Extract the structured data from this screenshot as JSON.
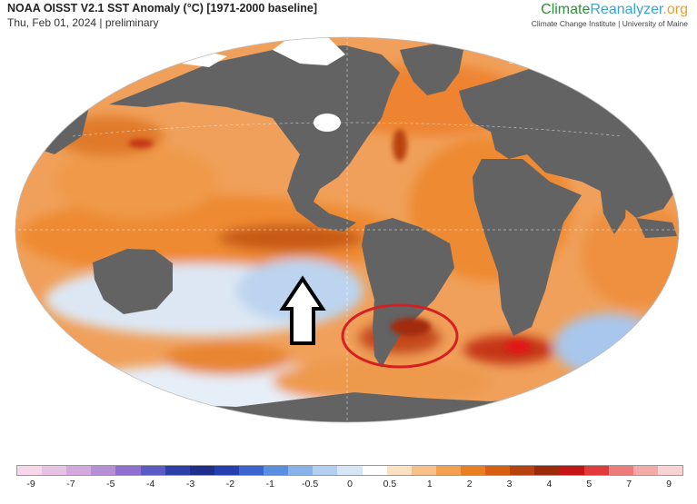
{
  "header": {
    "title": "NOAA OISST V2.1 SST Anomaly (°C) [1971-2000 baseline]",
    "date": "Thu, Feb 01, 2024 | preliminary"
  },
  "brand": {
    "part1": "Climate",
    "part2": "Reanalyzer",
    "part3": ".org",
    "subtitle": "Climate Change Institute | University of Maine"
  },
  "colorbar": {
    "colors": [
      "#f6d6e8",
      "#e6c2e4",
      "#d3a9de",
      "#b78fd6",
      "#8f6fcf",
      "#5a5bc4",
      "#2f3fa8",
      "#1e2f8a",
      "#263fb0",
      "#3a64d0",
      "#5a8ee0",
      "#87b2ea",
      "#b1cff2",
      "#d6e6f8",
      "#ffffff",
      "#fbe0c2",
      "#f7c089",
      "#f2a04e",
      "#ea7f22",
      "#d95f12",
      "#b8420d",
      "#9a2a0a",
      "#c41414",
      "#e23a3a",
      "#ee7a7a",
      "#f5aaaa",
      "#f9d2d2"
    ],
    "tick_labels": [
      "-9",
      "-7",
      "-5",
      "-4",
      "-3",
      "-2",
      "-1",
      "-0.5",
      "0",
      "0.5",
      "1",
      "2",
      "3",
      "4",
      "5",
      "7",
      "9"
    ]
  },
  "annotations": {
    "arrow_color": "#000000",
    "circle_color": "#d42020"
  },
  "palette": {
    "ocean_warm": "#ee9040",
    "ocean_neutral": "#f4f0f2",
    "ocean_cool": "#bcd4ef",
    "land": "#636363",
    "sea_ice": "#ffffff"
  }
}
